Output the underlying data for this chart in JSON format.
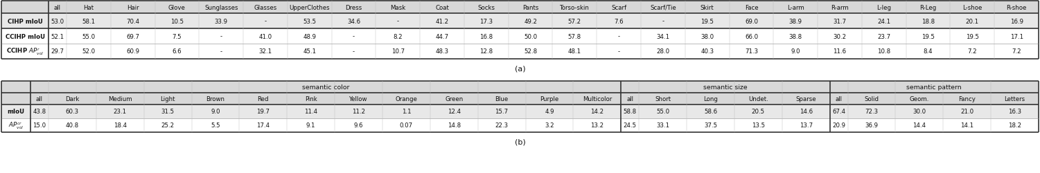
{
  "table_a": {
    "headers": [
      "",
      "all",
      "Hat",
      "Hair",
      "Glove",
      "Sunglasses",
      "Glasses",
      "UpperClothes",
      "Dress",
      "Mask",
      "Coat",
      "Socks",
      "Pants",
      "Torso-skin",
      "Scarf",
      "Scarf/Tie",
      "Skirt",
      "Face",
      "L-arm",
      "R-arm",
      "L-leg",
      "R-Leg",
      "L-shoe",
      "R-shoe"
    ],
    "rows": [
      [
        "CIHP mIoU",
        "53.0",
        "58.1",
        "70.4",
        "10.5",
        "33.9",
        "-",
        "53.5",
        "34.6",
        "-",
        "41.2",
        "17.3",
        "49.2",
        "57.2",
        "7.6",
        "-",
        "19.5",
        "69.0",
        "38.9",
        "31.7",
        "24.1",
        "18.8",
        "20.1",
        "16.9"
      ],
      [
        "CCIHP mIoU",
        "52.1",
        "55.0",
        "69.7",
        "7.5",
        "-",
        "41.0",
        "48.9",
        "-",
        "8.2",
        "44.7",
        "16.8",
        "50.0",
        "57.8",
        "-",
        "34.1",
        "38.0",
        "66.0",
        "38.8",
        "30.2",
        "23.7",
        "19.5",
        "19.5",
        "17.1"
      ],
      [
        "CCIHP AP_vol",
        "29.7",
        "52.0",
        "60.9",
        "6.6",
        "-",
        "32.1",
        "45.1",
        "-",
        "10.7",
        "48.3",
        "12.8",
        "52.8",
        "48.1",
        "-",
        "28.0",
        "40.3",
        "71.3",
        "9.0",
        "11.6",
        "10.8",
        "8.4",
        "7.2",
        "7.2"
      ]
    ],
    "caption": "(a)"
  },
  "table_b": {
    "group_headers": [
      "semantic color",
      "semantic size",
      "semantic pattern"
    ],
    "headers": [
      "",
      "all",
      "Dark",
      "Medium",
      "Light",
      "Brown",
      "Red",
      "Pink",
      "Yellow",
      "Orange",
      "Green",
      "Blue",
      "Purple",
      "Multicolor",
      "all",
      "Short",
      "Long",
      "Undet.",
      "Sparse",
      "all",
      "Solid",
      "Geom.",
      "Fancy",
      "Letters"
    ],
    "rows": [
      [
        "mIoU",
        "43.8",
        "60.3",
        "23.1",
        "31.5",
        "9.0",
        "19.7",
        "11.4",
        "11.2",
        "1.1",
        "12.4",
        "15.7",
        "4.9",
        "14.2",
        "58.8",
        "55.0",
        "58.6",
        "20.5",
        "14.6",
        "67.4",
        "72.3",
        "30.0",
        "21.0",
        "16.3"
      ],
      [
        "AP_vol",
        "15.0",
        "40.8",
        "18.4",
        "25.2",
        "5.5",
        "17.4",
        "9.1",
        "9.6",
        "0.07",
        "14.8",
        "22.3",
        "3.2",
        "13.2",
        "24.5",
        "33.1",
        "37.5",
        "13.5",
        "13.7",
        "20.9",
        "36.9",
        "14.4",
        "14.1",
        "18.2"
      ]
    ],
    "caption": "(b)"
  },
  "gray_bg": "#d8d8d8",
  "row1_bg": "#e8e8e8",
  "white_bg": "#ffffff",
  "text_color": "#111111",
  "font_size": 6.2,
  "thick_lw": 1.2,
  "thin_lw": 0.4
}
